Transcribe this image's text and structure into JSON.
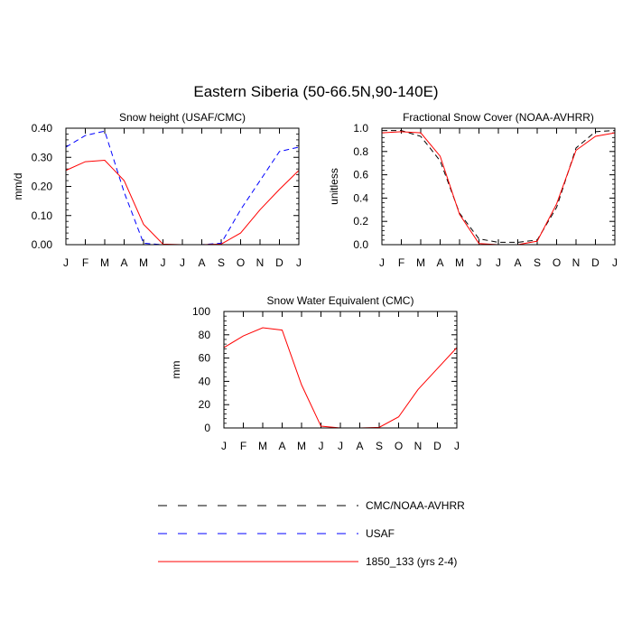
{
  "figure": {
    "title": "Eastern Siberia (50-66.5N,90-140E)"
  },
  "month_labels": [
    "J",
    "F",
    "M",
    "A",
    "M",
    "J",
    "J",
    "A",
    "S",
    "O",
    "N",
    "D",
    "J"
  ],
  "legend": [
    {
      "label": "CMC/NOAA-AVHRR",
      "color": "#000000",
      "dash": "dashed"
    },
    {
      "label": "USAF",
      "color": "#0000ff",
      "dash": "dashed"
    },
    {
      "label": "1850_133 (yrs 2-4)",
      "color": "#ff0000",
      "dash": "solid"
    }
  ],
  "chart_data": [
    {
      "type": "line",
      "title": "Snow height (USAF/CMC)",
      "ylabel": "mm/d",
      "ylim": [
        0,
        0.4
      ],
      "yticks": [
        "0.00",
        "0.10",
        "0.20",
        "0.30",
        "0.40"
      ],
      "x": [
        "J",
        "F",
        "M",
        "A",
        "M",
        "J",
        "J",
        "A",
        "S",
        "O",
        "N",
        "D",
        "J"
      ],
      "series": [
        {
          "name": "CMC/NOAA-AVHRR",
          "color": "#000000",
          "dash": "dashed",
          "values": [
            0,
            0,
            0,
            0,
            0,
            0,
            0,
            0,
            0,
            0,
            0,
            0,
            0
          ]
        },
        {
          "name": "USAF",
          "color": "#0000ff",
          "dash": "dashed",
          "values": [
            0.335,
            0.375,
            0.39,
            0.18,
            0.005,
            0,
            0,
            0,
            0.005,
            0.12,
            0.22,
            0.32,
            0.335
          ]
        },
        {
          "name": "1850_133 (yrs 2-4)",
          "color": "#ff0000",
          "dash": "solid",
          "values": [
            0.255,
            0.285,
            0.29,
            0.22,
            0.07,
            0.002,
            0,
            0,
            0.002,
            0.04,
            0.12,
            0.19,
            0.255
          ]
        }
      ]
    },
    {
      "type": "line",
      "title": "Fractional Snow Cover (NOAA-AVHRR)",
      "ylabel": "unitless",
      "ylim": [
        0,
        1.0
      ],
      "yticks": [
        "0.0",
        "0.2",
        "0.4",
        "0.6",
        "0.8",
        "1.0"
      ],
      "x": [
        "J",
        "F",
        "M",
        "A",
        "M",
        "J",
        "J",
        "A",
        "S",
        "O",
        "N",
        "D",
        "J"
      ],
      "series": [
        {
          "name": "CMC/NOAA-AVHRR",
          "color": "#000000",
          "dash": "dashed",
          "values": [
            0.98,
            0.98,
            0.93,
            0.72,
            0.27,
            0.05,
            0.02,
            0.02,
            0.04,
            0.32,
            0.83,
            0.97,
            0.98
          ]
        },
        {
          "name": "1850_133 (yrs 2-4)",
          "color": "#ff0000",
          "dash": "solid",
          "values": [
            0.96,
            0.97,
            0.96,
            0.76,
            0.26,
            0.01,
            0.0,
            0.0,
            0.03,
            0.35,
            0.81,
            0.93,
            0.96
          ]
        }
      ]
    },
    {
      "type": "line",
      "title": "Snow Water Equivalent (CMC)",
      "ylabel": "mm",
      "ylim": [
        0,
        100
      ],
      "yticks": [
        "0",
        "20",
        "40",
        "60",
        "80",
        "100"
      ],
      "x": [
        "J",
        "F",
        "M",
        "A",
        "M",
        "J",
        "J",
        "A",
        "S",
        "O",
        "N",
        "D",
        "J"
      ],
      "series": [
        {
          "name": "CMC/NOAA-AVHRR",
          "color": "#000000",
          "dash": "dashed",
          "values": [
            0,
            0,
            0,
            0,
            0,
            0,
            0,
            0,
            0,
            0,
            0,
            0,
            0
          ]
        },
        {
          "name": "1850_133 (yrs 2-4)",
          "color": "#ff0000",
          "dash": "solid",
          "values": [
            69,
            79,
            86,
            84,
            37,
            1.5,
            0,
            0,
            0.5,
            9.5,
            33,
            51,
            69
          ]
        }
      ]
    }
  ]
}
